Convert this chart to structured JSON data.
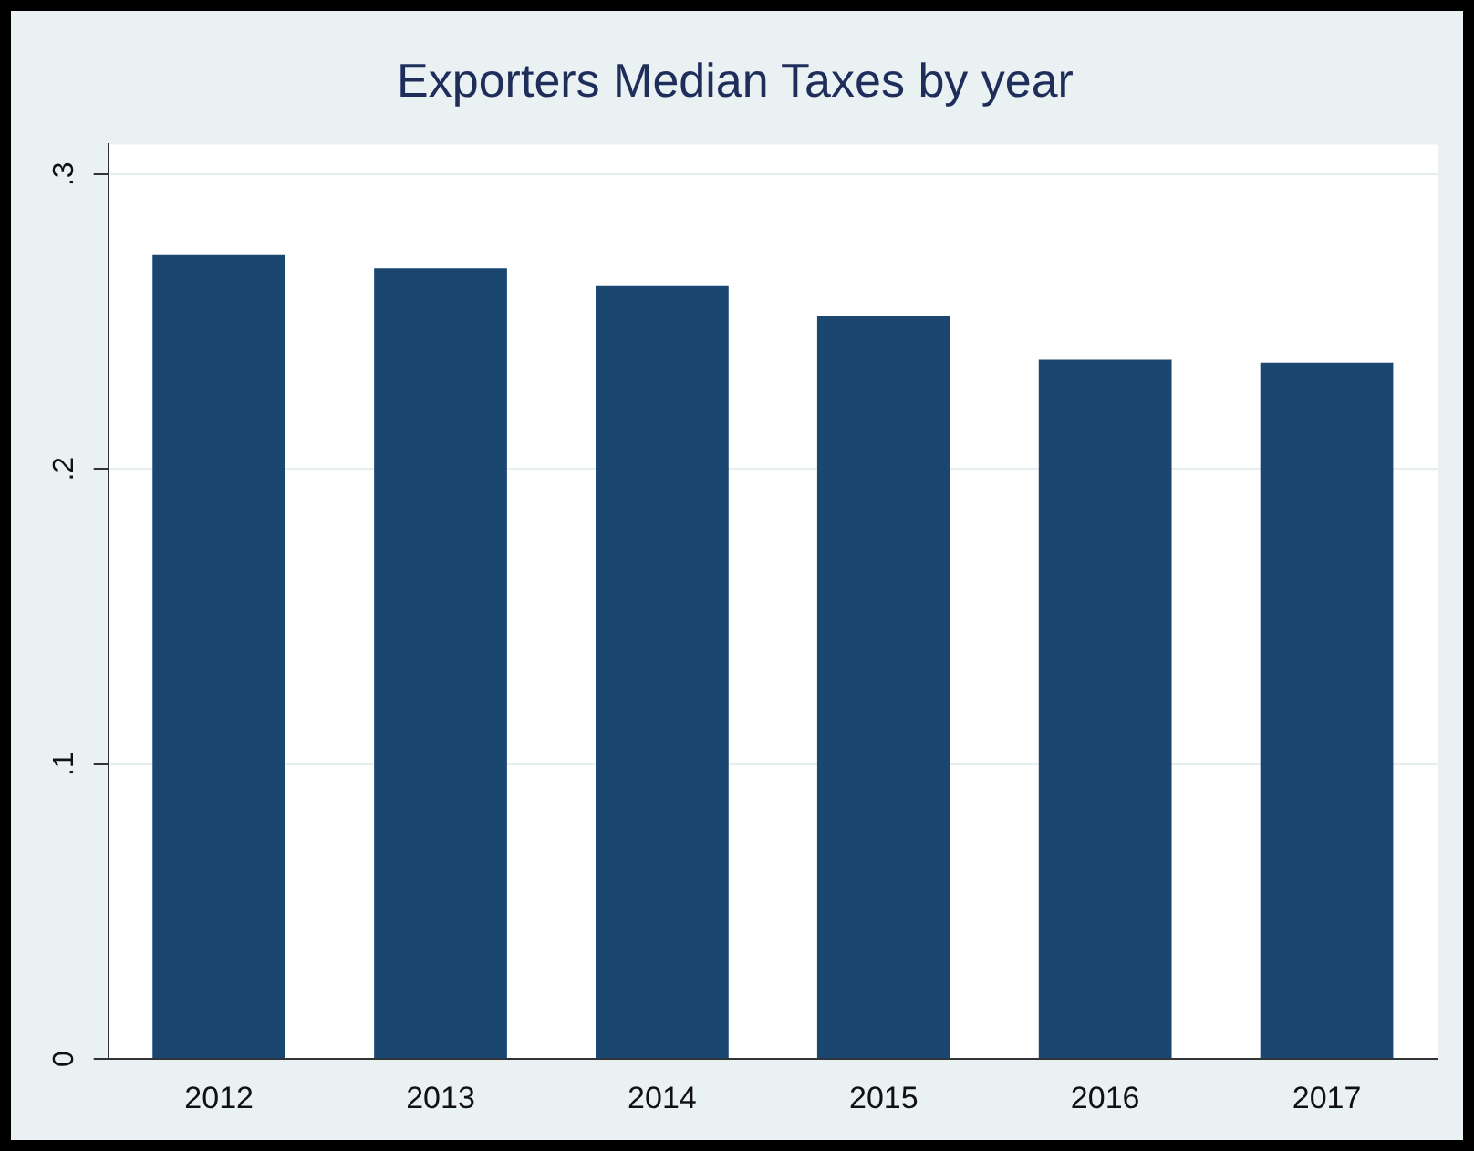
{
  "chart_data": {
    "type": "bar",
    "title": "Exporters Median Taxes by year",
    "categories": [
      "2012",
      "2013",
      "2014",
      "2015",
      "2016",
      "2017"
    ],
    "values": [
      0.2725,
      0.268,
      0.262,
      0.252,
      0.237,
      0.236
    ],
    "color": "#1a4670",
    "ylim": [
      0,
      0.31
    ],
    "yticks": [
      0,
      {
        "value": 0.1,
        "label": ".1"
      },
      {
        "value": 0.2,
        "label": ".2"
      },
      {
        "value": 0.3,
        "label": ".3"
      }
    ],
    "grid": "y"
  }
}
